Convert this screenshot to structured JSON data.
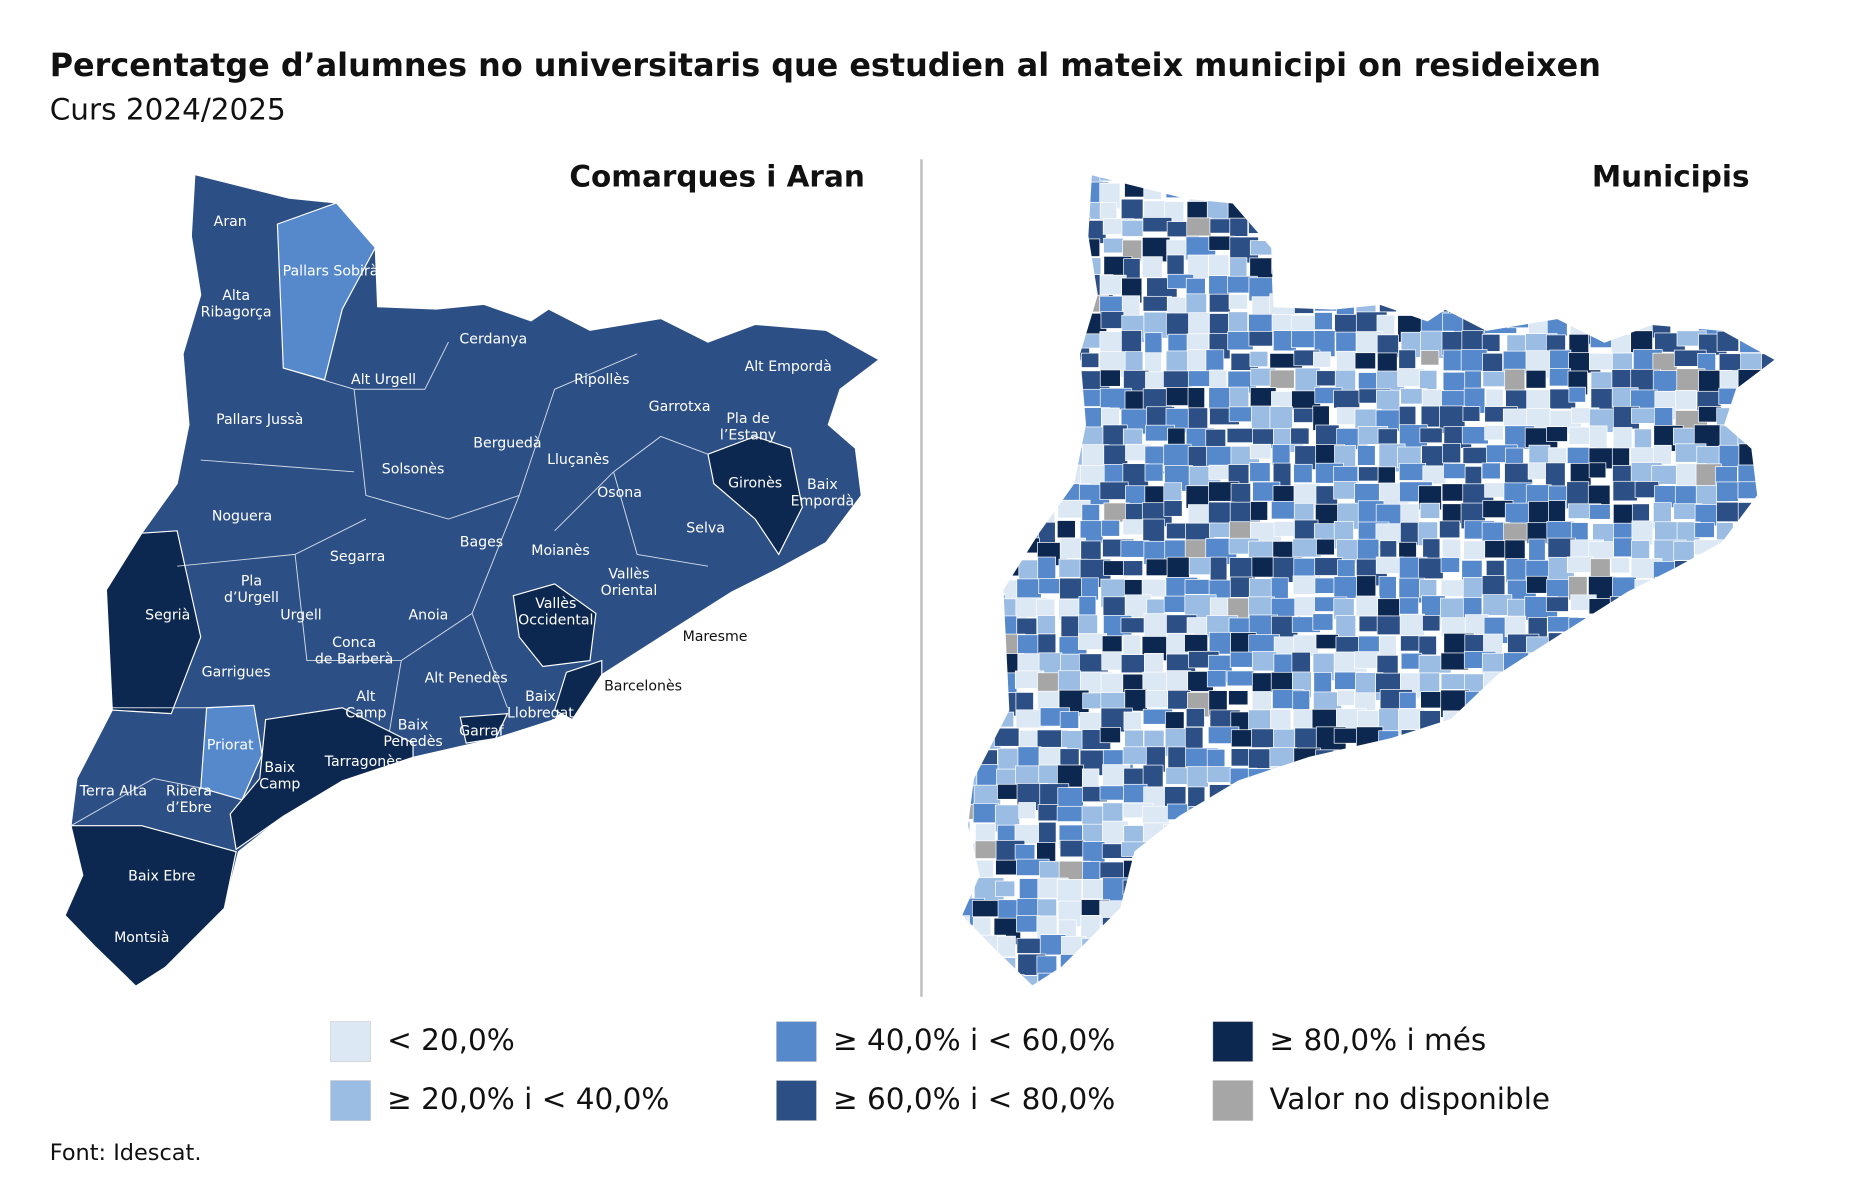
{
  "title": "Percentatge d’alumnes no universitaris que estudien al mateix municipi on resideixen",
  "subtitle": "Curs 2024/2025",
  "panels": [
    {
      "title": "Comarques i Aran"
    },
    {
      "title": "Municipis"
    }
  ],
  "comarques": [
    "Aran",
    "Pallars Sobirà",
    "Alta Ribagorça",
    "Cerdanya",
    "Alt Urgell",
    "Ripollès",
    "Alt Empordà",
    "Pallars Jussà",
    "Garrotxa",
    "Pla de l’Estany",
    "Berguedà",
    "Lluçanès",
    "Solsonès",
    "Gironès",
    "Baix Empordà",
    "Osona",
    "Noguera",
    "Selva",
    "Bages",
    "Moianès",
    "Segarra",
    "Vallès Oriental",
    "Pla d’Urgell",
    "Segrià",
    "Urgell",
    "Anoia",
    "Vallès Occidental",
    "Maresme",
    "Conca de Barberà",
    "Garrigues",
    "Alt Penedès",
    "Barcelonès",
    "Alt Camp",
    "Baix Llobregat",
    "Baix Penedès",
    "Garraf",
    "Priorat",
    "Tarragonès",
    "Baix Camp",
    "Terra Alta",
    "Ribera d’Ebre",
    "Baix Ebre",
    "Montsià"
  ],
  "legend": [
    {
      "label": "< 20,0%",
      "color": "#dce8f4"
    },
    {
      "label": "≥ 20,0% i < 40,0%",
      "color": "#9bbde3"
    },
    {
      "label": "≥ 40,0% i < 60,0%",
      "color": "#5689cc"
    },
    {
      "label": "≥ 60,0% i < 80,0%",
      "color": "#2c4f86"
    },
    {
      "label": "≥ 80,0% i més",
      "color": "#0d2850"
    },
    {
      "label": "Valor no disponible",
      "color": "#a6a6a6"
    }
  ],
  "source": "Font: Idescat."
}
